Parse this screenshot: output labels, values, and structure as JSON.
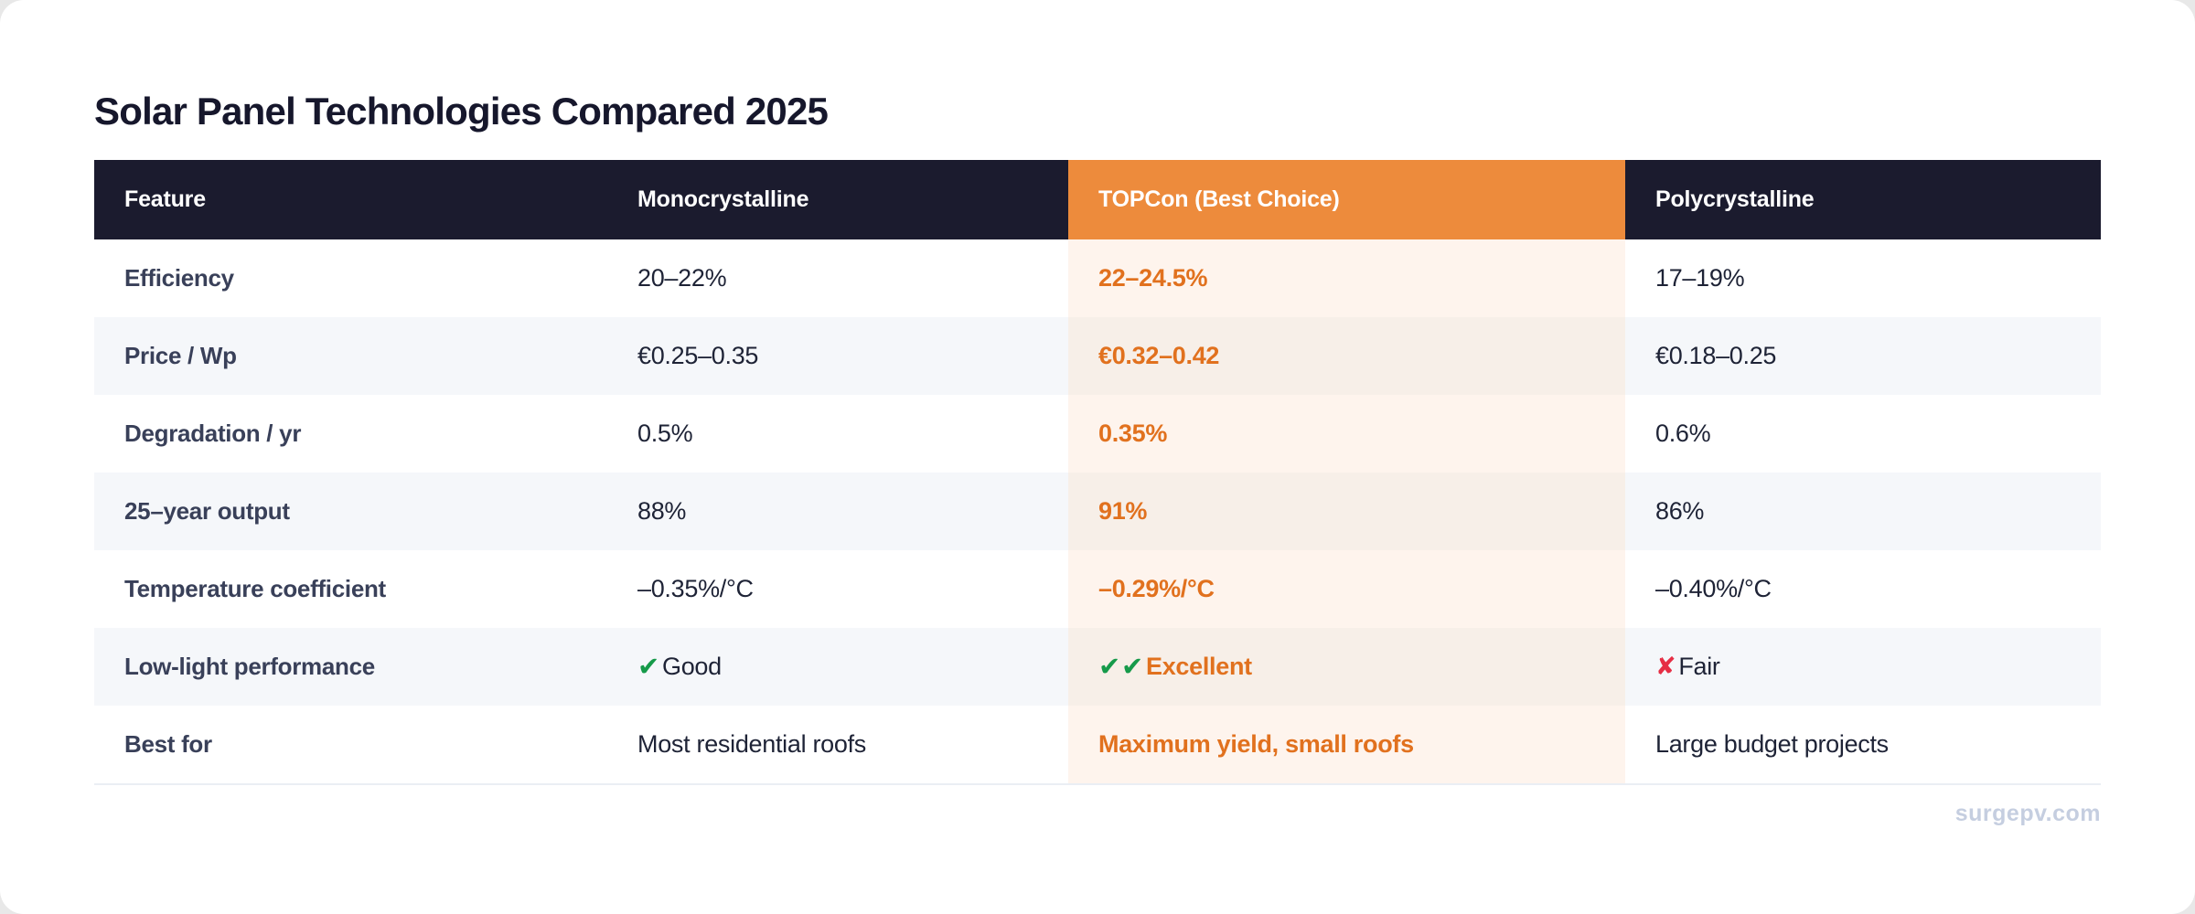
{
  "page": {
    "watermark": "surgepv.com"
  },
  "colors": {
    "header_bg": "#1b1b2e",
    "accent_orange": "#ed8b3c",
    "accent_text": "#e1711e",
    "highlight_tint": "#fef4ed",
    "highlight_tint_alt": "#f7efe8",
    "row_alt_bg": "#f5f7fa",
    "check_green": "#169a4a",
    "cross_red": "#e62e44",
    "watermark_color": "#c5cee0"
  },
  "icons": {
    "check": "✔",
    "cross": "✘"
  },
  "chart_data": {
    "type": "table",
    "title": "Solar Panel Technologies Compared 2025",
    "columns": [
      "Feature",
      "Monocrystalline",
      "TOPCon (Best Choice)",
      "Polycrystalline"
    ],
    "highlighted_column_index": 2,
    "highlighted_column": "TOPCon (Best Choice)",
    "rows": [
      {
        "feature": "Efficiency",
        "mono": "20–22%",
        "topcon": "22–24.5%",
        "poly": "17–19%"
      },
      {
        "feature": "Price / Wp",
        "mono": "€0.25–0.35",
        "topcon": "€0.32–0.42",
        "poly": "€0.18–0.25"
      },
      {
        "feature": "Degradation / yr",
        "mono": "0.5%",
        "topcon": "0.35%",
        "poly": "0.6%"
      },
      {
        "feature": "25–year output",
        "mono": "88%",
        "topcon": "91%",
        "poly": "86%"
      },
      {
        "feature": "Temperature coefficient",
        "mono": "–0.35%/°C",
        "topcon": "–0.29%/°C",
        "poly": "–0.40%/°C"
      },
      {
        "feature": "Low-light performance",
        "mono": "Good",
        "mono_icon": "check",
        "topcon": "Excellent",
        "topcon_icon": "double-check",
        "poly": "Fair",
        "poly_icon": "cross"
      },
      {
        "feature": "Best for",
        "mono": "Most residential roofs",
        "topcon": "Maximum yield, small roofs",
        "poly": "Large budget projects"
      }
    ]
  }
}
